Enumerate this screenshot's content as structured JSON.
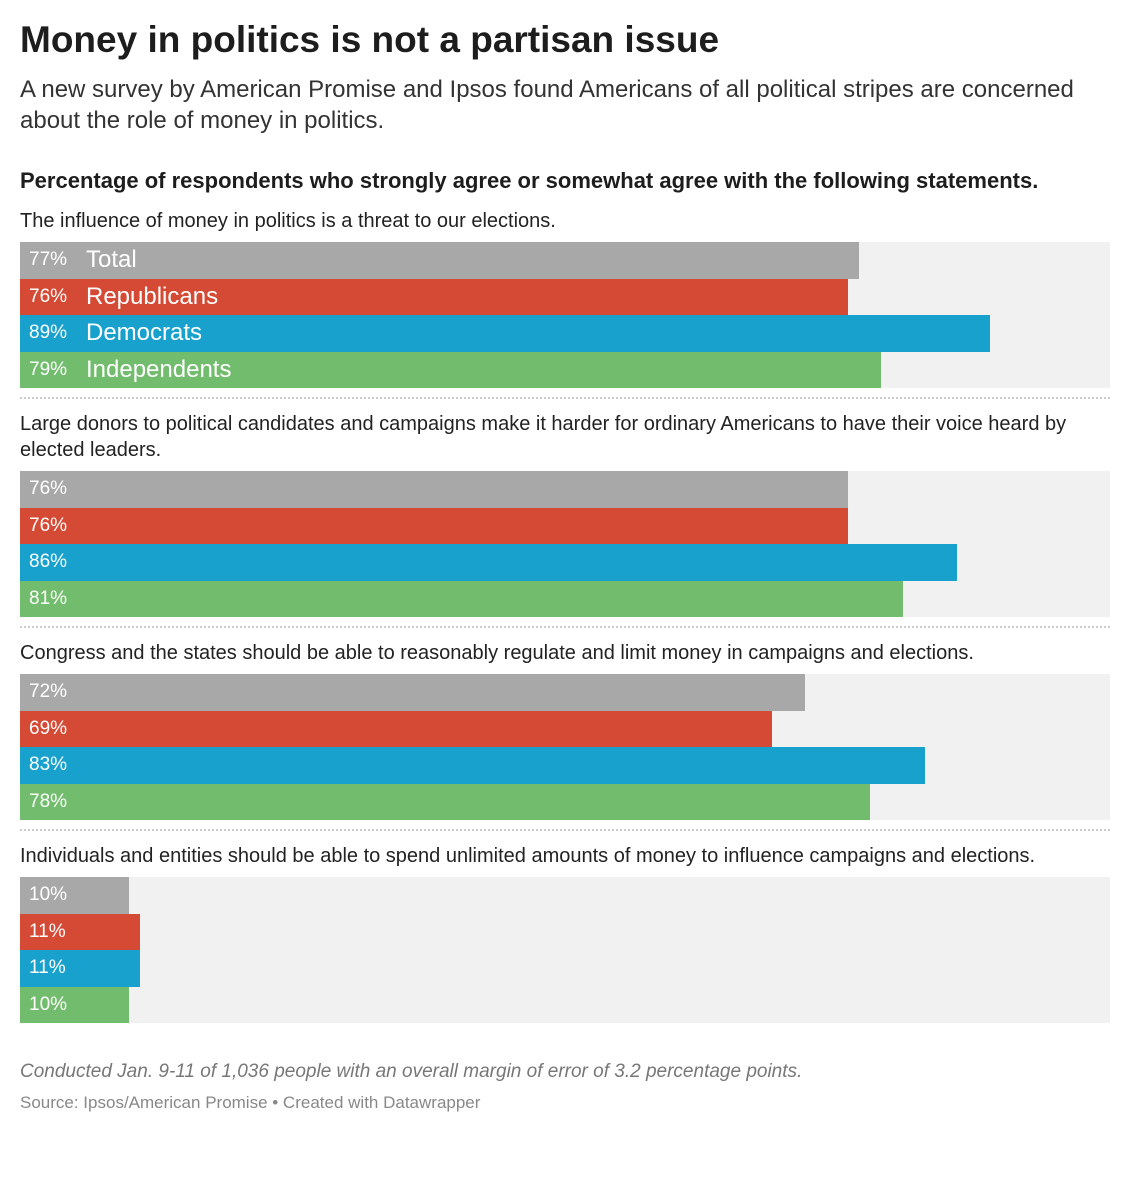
{
  "chart_data": {
    "type": "bar",
    "title": "Money in politics is not a partisan issue",
    "subtitle": "A new survey by American Promise and Ipsos found Americans of all political stripes are concerned about the role of money in politics.",
    "heading": "Percentage of respondents who strongly agree or somewhat agree with the following statements.",
    "categories": [
      "The influence of money in politics is a threat to our elections.",
      "Large donors to political candidates and campaigns make it harder for ordinary Americans to have their voice heard by elected leaders.",
      "Congress and the states should be able to reasonably regulate and limit money in campaigns and elections.",
      "Individuals and entities should be able to spend unlimited amounts of money to influence campaigns and elections."
    ],
    "series": [
      {
        "name": "Total",
        "color": "#a8a8a8",
        "values": [
          77,
          76,
          72,
          10
        ],
        "value_labels": [
          "77%",
          "76%",
          "72%",
          "10%"
        ]
      },
      {
        "name": "Republicans",
        "color": "#d54a35",
        "values": [
          76,
          76,
          69,
          11
        ],
        "value_labels": [
          "76%",
          "76%",
          "69%",
          "11%"
        ]
      },
      {
        "name": "Democrats",
        "color": "#18a1cd",
        "values": [
          89,
          86,
          83,
          11
        ],
        "value_labels": [
          "89%",
          "86%",
          "83%",
          "11%"
        ]
      },
      {
        "name": "Independents",
        "color": "#72bd6d",
        "values": [
          79,
          81,
          78,
          10
        ],
        "value_labels": [
          "79%",
          "81%",
          "78%",
          "10%"
        ]
      }
    ],
    "xlim": [
      0,
      100
    ],
    "note": "Conducted Jan. 9-11 of 1,036 people with an overall margin of error of 3.2 percentage points.",
    "source": "Source: Ipsos/American Promise • Created with Datawrapper"
  }
}
